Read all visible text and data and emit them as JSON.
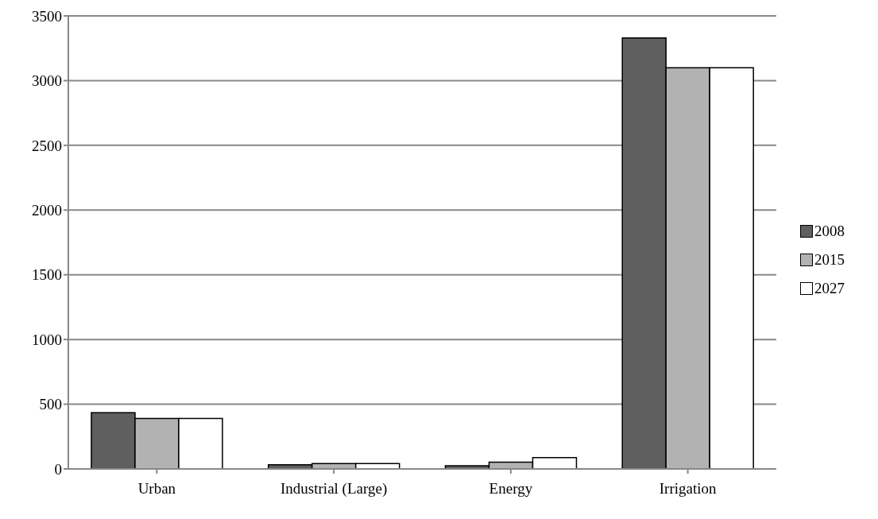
{
  "chart_data": {
    "type": "bar",
    "categories": [
      "Urban",
      "Industrial (Large)",
      "Energy",
      "Irrigation"
    ],
    "series": [
      {
        "name": "2008",
        "color": "#5f5f5f",
        "values": [
          435,
          32,
          24,
          3330
        ]
      },
      {
        "name": "2015",
        "color": "#b2b2b2",
        "values": [
          390,
          42,
          52,
          3100
        ]
      },
      {
        "name": "2027",
        "color": "#ffffff",
        "values": [
          390,
          42,
          88,
          3100
        ]
      }
    ],
    "ylim": [
      0,
      3500
    ],
    "yticks": [
      0,
      500,
      1000,
      1500,
      2000,
      2500,
      3000,
      3500
    ],
    "grid": "y",
    "legend": "right"
  }
}
